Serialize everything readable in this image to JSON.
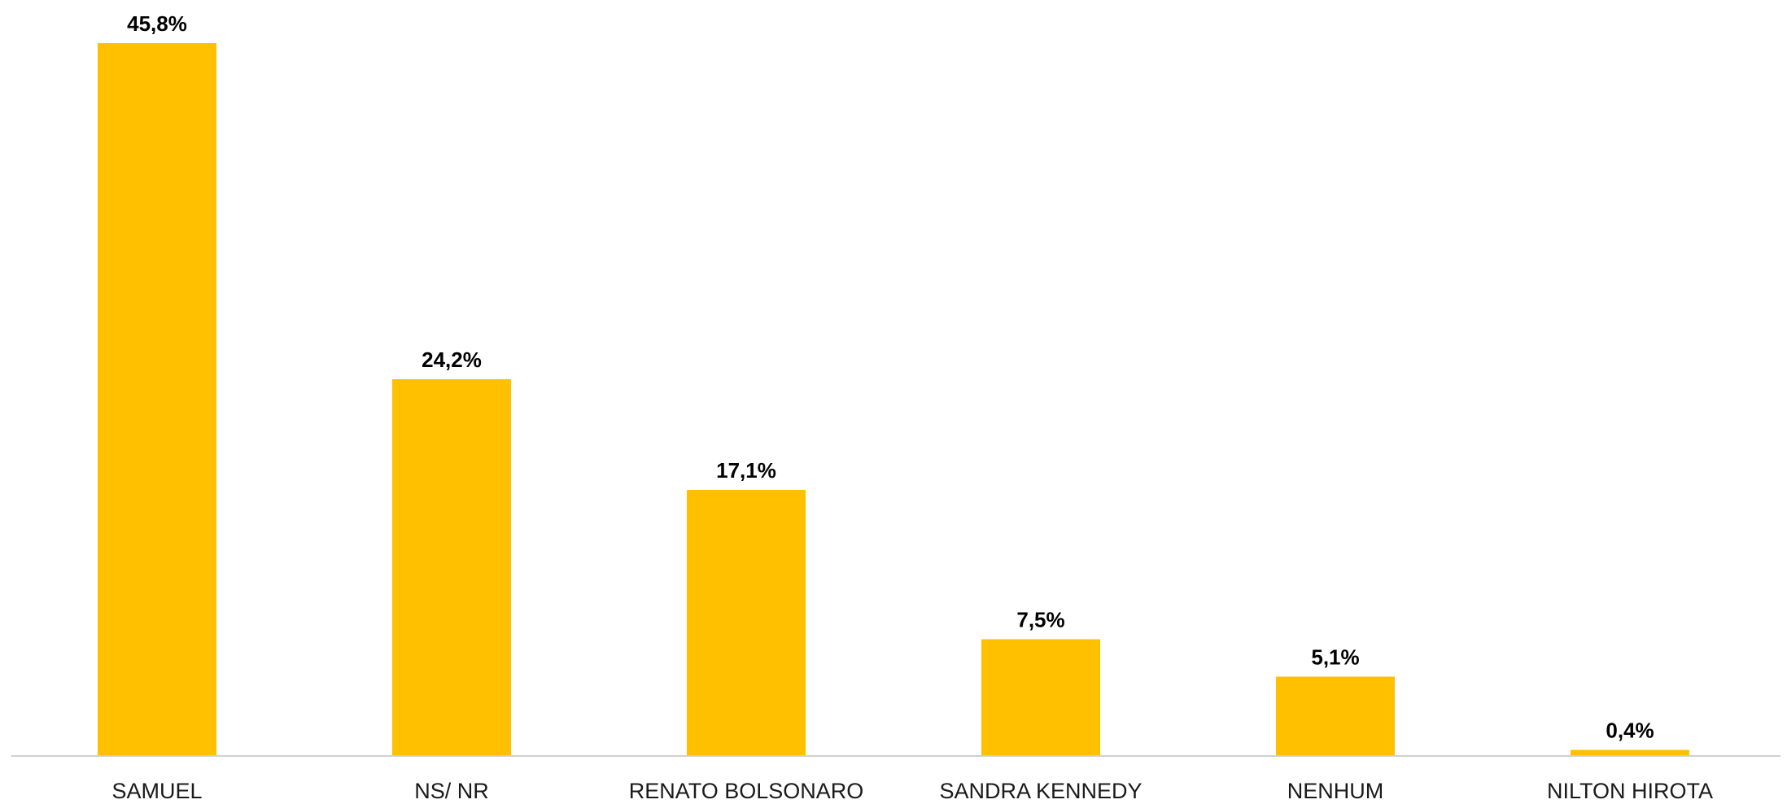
{
  "chart_data": {
    "type": "bar",
    "categories": [
      "SAMUEL",
      "NS/ NR",
      "RENATO BOLSONARO",
      "SANDRA KENNEDY",
      "NENHUM",
      "NILTON HIROTA"
    ],
    "values": [
      45.8,
      24.2,
      17.1,
      7.5,
      5.1,
      0.4
    ],
    "data_labels": [
      "45,8%",
      "24,2%",
      "17,1%",
      "7,5%",
      "5,1%",
      "0,4%"
    ],
    "title": "",
    "xlabel": "",
    "ylabel": "",
    "ylim": [
      0,
      45.8
    ],
    "grid": false,
    "legend": "none",
    "bar_color": "#FFC000",
    "axis_color": "#D0D0D0"
  }
}
